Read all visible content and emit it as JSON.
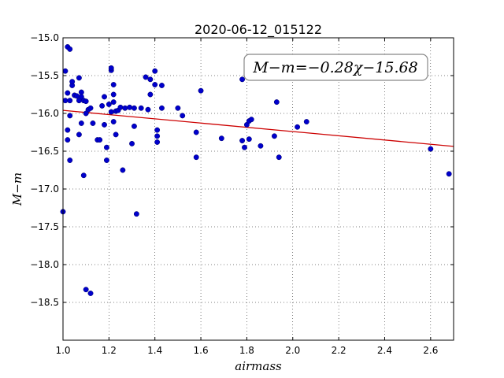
{
  "chart_data": {
    "type": "scatter",
    "title": "2020-06-12_015122",
    "xlabel": "airmass",
    "ylabel": "M−m",
    "xlim": [
      1.0,
      2.7
    ],
    "ylim": [
      -15.0,
      -19.0
    ],
    "y_inverted": true,
    "x_ticks": [
      1.0,
      1.2,
      1.4,
      1.6,
      1.8,
      2.0,
      2.2,
      2.4,
      2.6
    ],
    "x_tick_labels": [
      "1.0",
      "1.2",
      "1.4",
      "1.6",
      "1.8",
      "2.0",
      "2.2",
      "2.4",
      "2.6"
    ],
    "y_ticks": [
      -15.0,
      -15.5,
      -16.0,
      -16.5,
      -17.0,
      -17.5,
      -18.0,
      -18.5
    ],
    "y_tick_labels": [
      "−15.0",
      "−15.5",
      "−16.0",
      "−16.5",
      "−17.0",
      "−17.5",
      "−18.0",
      "−18.5"
    ],
    "grid": true,
    "annotation": "M−m=−0.28χ−15.68",
    "fit": {
      "slope": -0.28,
      "intercept": -15.68,
      "color": "#cc0000"
    },
    "point_color": "#0000cc",
    "points": [
      [
        1.01,
        -15.44
      ],
      [
        1.02,
        -15.12
      ],
      [
        1.03,
        -15.15
      ],
      [
        1.01,
        -15.83
      ],
      [
        1.02,
        -15.73
      ],
      [
        1.03,
        -15.83
      ],
      [
        1.04,
        -15.63
      ],
      [
        1.04,
        -15.58
      ],
      [
        1.05,
        -15.76
      ],
      [
        1.06,
        -15.77
      ],
      [
        1.07,
        -15.83
      ],
      [
        1.07,
        -15.53
      ],
      [
        1.08,
        -15.72
      ],
      [
        1.08,
        -15.78
      ],
      [
        1.09,
        -15.83
      ],
      [
        1.1,
        -15.84
      ],
      [
        1.11,
        -15.95
      ],
      [
        1.02,
        -16.22
      ],
      [
        1.03,
        -16.03
      ],
      [
        1.02,
        -16.35
      ],
      [
        1.03,
        -16.62
      ],
      [
        1.08,
        -16.13
      ],
      [
        1.07,
        -16.28
      ],
      [
        1.09,
        -16.82
      ],
      [
        1.0,
        -17.3
      ],
      [
        1.1,
        -18.33
      ],
      [
        1.12,
        -18.38
      ],
      [
        1.13,
        -16.13
      ],
      [
        1.1,
        -16.0
      ],
      [
        1.12,
        -15.93
      ],
      [
        1.15,
        -16.35
      ],
      [
        1.16,
        -16.35
      ],
      [
        1.17,
        -15.9
      ],
      [
        1.18,
        -15.78
      ],
      [
        1.18,
        -16.15
      ],
      [
        1.19,
        -16.45
      ],
      [
        1.19,
        -16.62
      ],
      [
        1.2,
        -15.88
      ],
      [
        1.21,
        -15.43
      ],
      [
        1.21,
        -15.4
      ],
      [
        1.22,
        -15.62
      ],
      [
        1.22,
        -15.75
      ],
      [
        1.22,
        -15.85
      ],
      [
        1.21,
        -15.98
      ],
      [
        1.22,
        -16.11
      ],
      [
        1.23,
        -15.97
      ],
      [
        1.24,
        -15.96
      ],
      [
        1.25,
        -15.92
      ],
      [
        1.23,
        -16.28
      ],
      [
        1.26,
        -16.75
      ],
      [
        1.27,
        -15.93
      ],
      [
        1.29,
        -15.92
      ],
      [
        1.3,
        -16.4
      ],
      [
        1.31,
        -16.17
      ],
      [
        1.31,
        -15.93
      ],
      [
        1.32,
        -17.33
      ],
      [
        1.34,
        -15.93
      ],
      [
        1.36,
        -15.52
      ],
      [
        1.37,
        -15.95
      ],
      [
        1.38,
        -15.55
      ],
      [
        1.38,
        -15.75
      ],
      [
        1.4,
        -15.44
      ],
      [
        1.4,
        -15.62
      ],
      [
        1.41,
        -16.22
      ],
      [
        1.41,
        -16.3
      ],
      [
        1.41,
        -16.38
      ],
      [
        1.43,
        -15.63
      ],
      [
        1.43,
        -15.93
      ],
      [
        1.5,
        -15.93
      ],
      [
        1.52,
        -16.03
      ],
      [
        1.58,
        -16.58
      ],
      [
        1.58,
        -16.25
      ],
      [
        1.6,
        -15.7
      ],
      [
        1.69,
        -16.33
      ],
      [
        1.78,
        -15.55
      ],
      [
        1.78,
        -16.36
      ],
      [
        1.79,
        -16.45
      ],
      [
        1.8,
        -16.15
      ],
      [
        1.81,
        -16.1
      ],
      [
        1.82,
        -16.08
      ],
      [
        1.81,
        -16.34
      ],
      [
        1.86,
        -16.43
      ],
      [
        1.92,
        -16.3
      ],
      [
        1.93,
        -15.85
      ],
      [
        1.94,
        -16.58
      ],
      [
        2.02,
        -16.18
      ],
      [
        2.06,
        -16.11
      ],
      [
        2.6,
        -16.47
      ],
      [
        2.68,
        -16.8
      ]
    ]
  }
}
